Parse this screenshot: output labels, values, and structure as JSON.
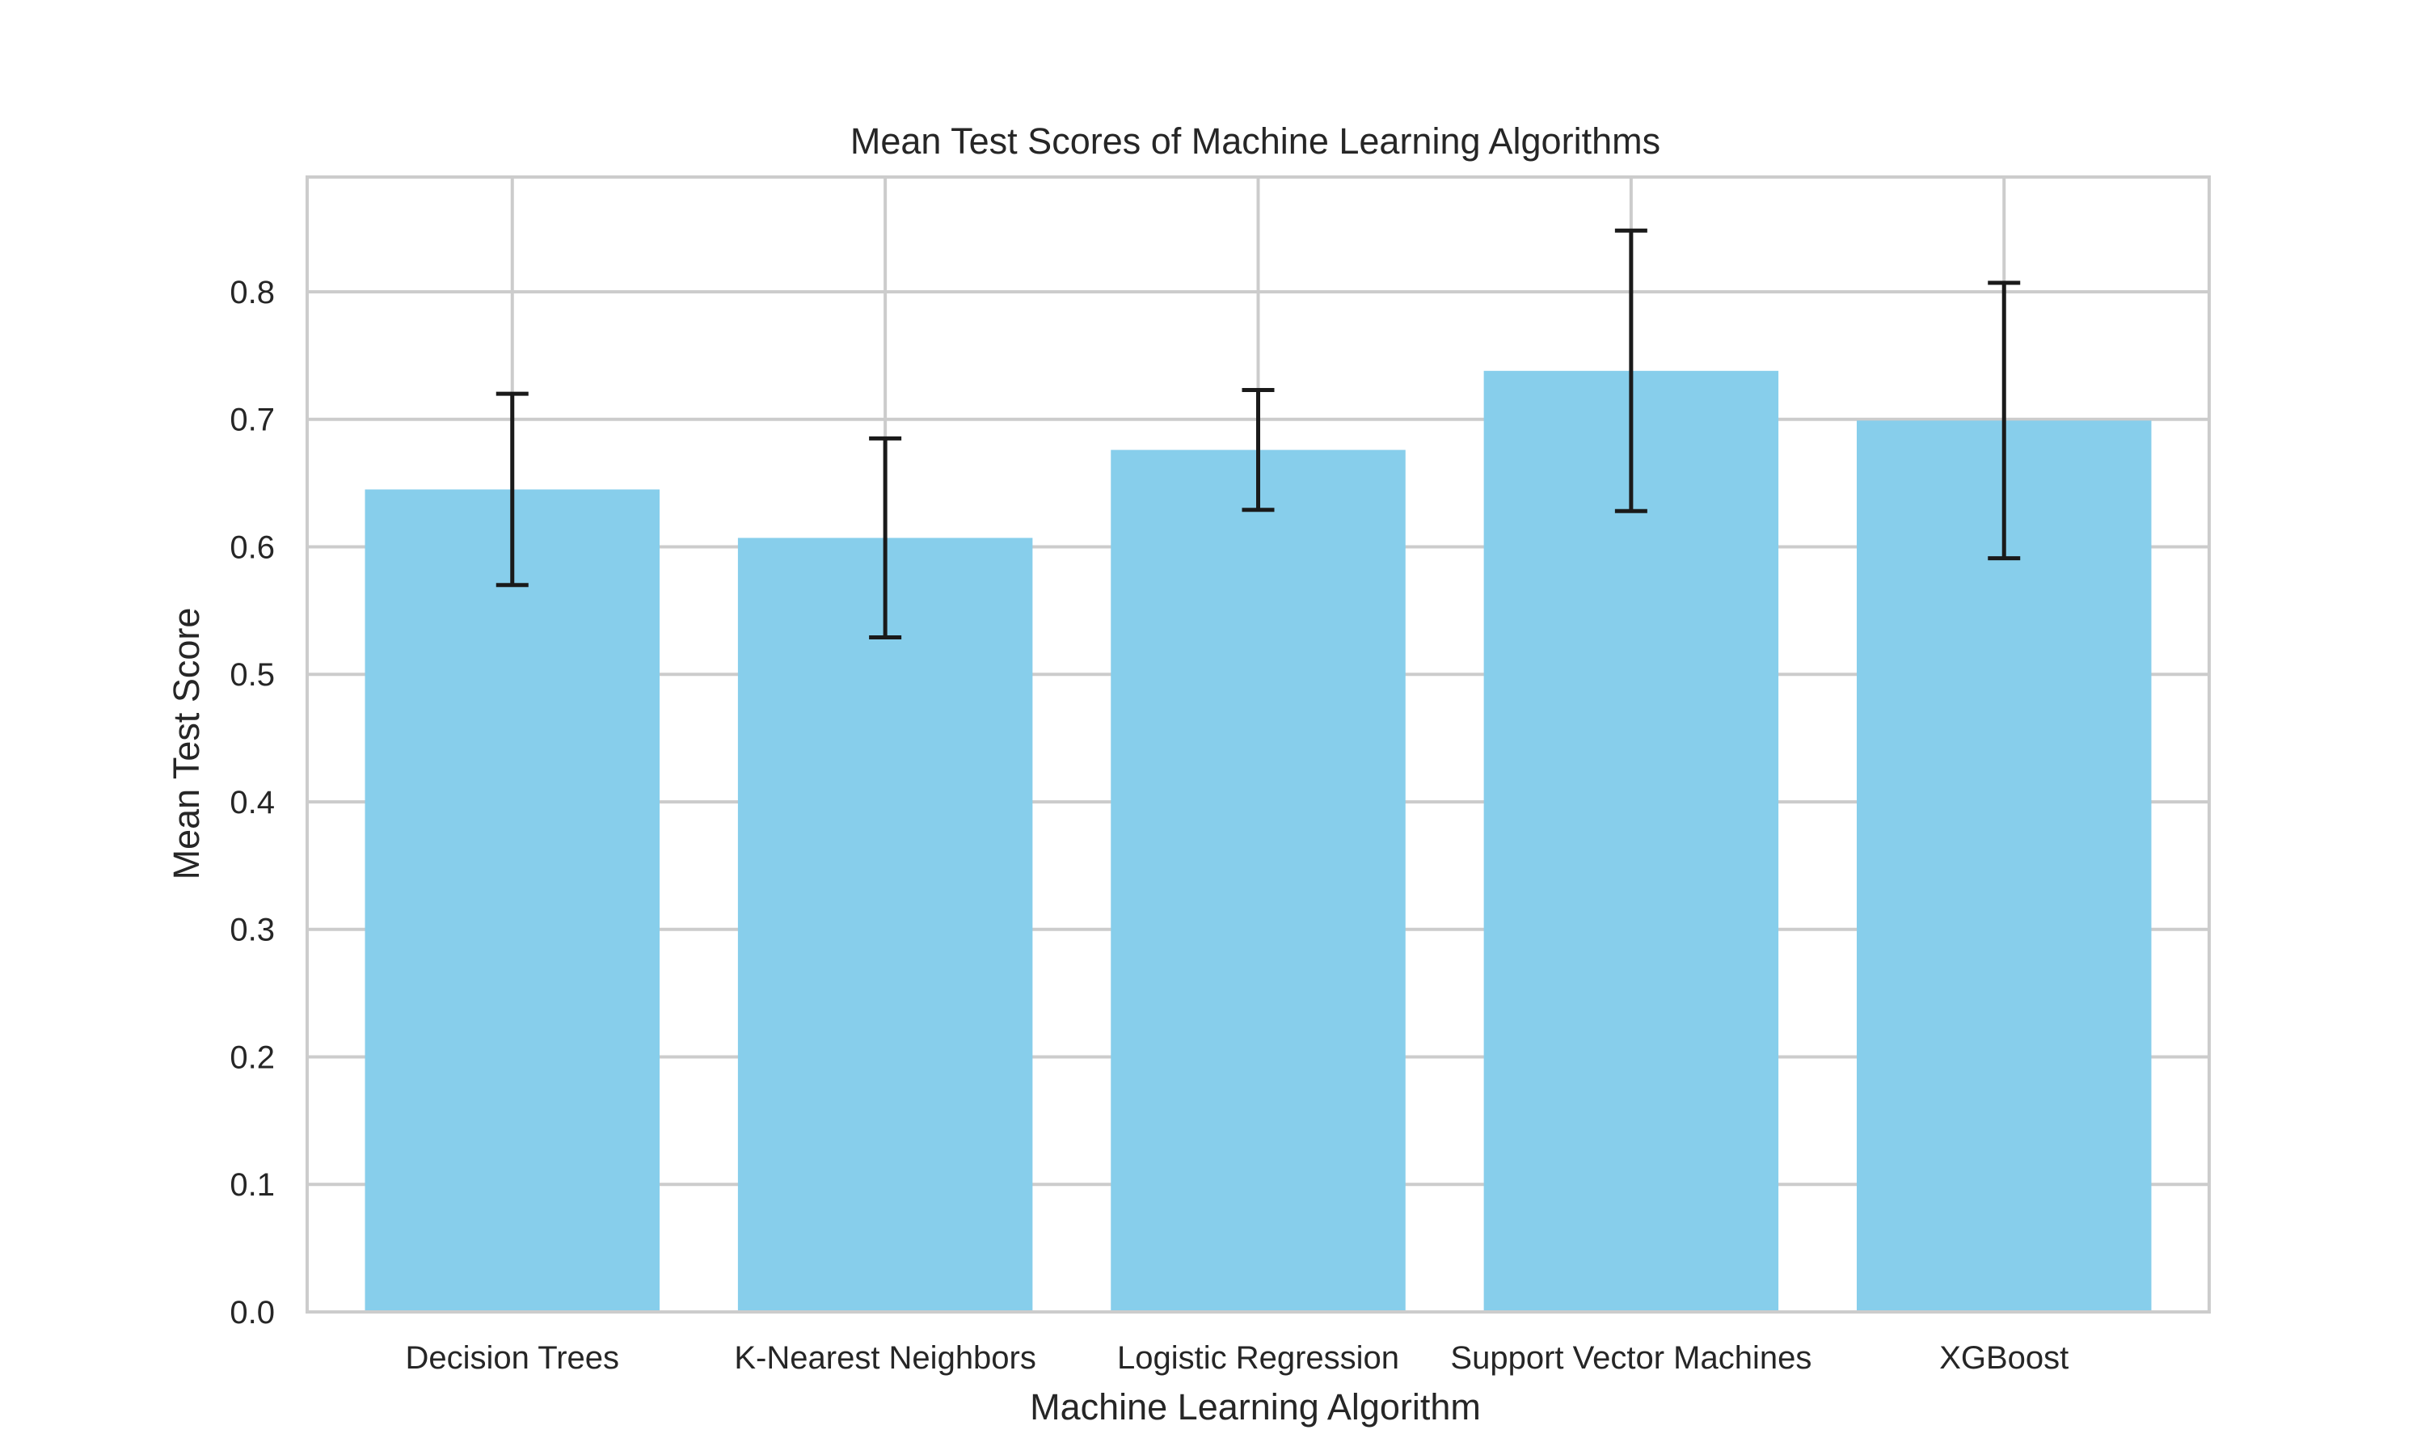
{
  "chart_data": {
    "type": "bar",
    "title": "Mean Test Scores of Machine Learning Algorithms",
    "xlabel": "Machine Learning Algorithm",
    "ylabel": "Mean Test Score",
    "categories": [
      "Decision Trees",
      "K-Nearest Neighbors",
      "Logistic Regression",
      "Support Vector Machines",
      "XGBoost"
    ],
    "values": [
      0.645,
      0.607,
      0.676,
      0.738,
      0.699
    ],
    "errors": [
      0.075,
      0.078,
      0.047,
      0.11,
      0.108
    ],
    "ylim": [
      0,
      0.89
    ],
    "yticks": [
      0.0,
      0.1,
      0.2,
      0.3,
      0.4,
      0.5,
      0.6,
      0.7,
      0.8
    ],
    "ytick_labels": [
      "0.0",
      "0.1",
      "0.2",
      "0.3",
      "0.4",
      "0.5",
      "0.6",
      "0.7",
      "0.8"
    ],
    "grid": true,
    "colors": {
      "bar": "#87ceeb",
      "error_bar": "#1a1a1a",
      "grid": "#cccccc",
      "frame": "#cccccc"
    }
  }
}
